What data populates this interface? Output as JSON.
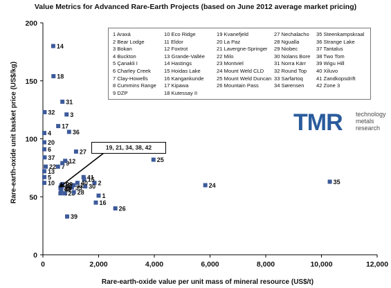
{
  "chart_data": {
    "type": "scatter",
    "title": "Value Metrics for Advanced Rare-Earth Projects (based on June 2012 average market pricing)",
    "xlabel": "Rare-earth-oxide value per unit mass of mineral resource (US$/t)",
    "ylabel": "Rare-earth-oxide unit basket price (US$/kg)",
    "xlim": [
      0,
      12000
    ],
    "ylim": [
      0,
      200
    ],
    "xticks": [
      "0",
      "2,000",
      "4,000",
      "6,000",
      "8,000",
      "10,000",
      "12,000"
    ],
    "yticks": [
      "0",
      "50",
      "100",
      "150",
      "200"
    ],
    "grid": false,
    "marker_color": "#3d5a9a",
    "points": [
      {
        "id": "1",
        "x": 2000,
        "y": 51
      },
      {
        "id": "2",
        "x": 1850,
        "y": 62
      },
      {
        "id": "3",
        "x": 850,
        "y": 121
      },
      {
        "id": "4",
        "x": 50,
        "y": 105
      },
      {
        "id": "5",
        "x": 50,
        "y": 67
      },
      {
        "id": "6",
        "x": 50,
        "y": 91
      },
      {
        "id": "7",
        "x": 540,
        "y": 76
      },
      {
        "id": "8",
        "x": 630,
        "y": 53
      },
      {
        "id": "9",
        "x": 700,
        "y": 79
      },
      {
        "id": "10",
        "x": 50,
        "y": 62
      },
      {
        "id": "11",
        "x": 1100,
        "y": 60
      },
      {
        "id": "12",
        "x": 800,
        "y": 81
      },
      {
        "id": "13",
        "x": 50,
        "y": 72
      },
      {
        "id": "14",
        "x": 370,
        "y": 180
      },
      {
        "id": "15",
        "x": 1480,
        "y": 65
      },
      {
        "id": "16",
        "x": 1900,
        "y": 45
      },
      {
        "id": "17",
        "x": 550,
        "y": 111
      },
      {
        "id": "18",
        "x": 380,
        "y": 154
      },
      {
        "id": "19",
        "x": 660,
        "y": 60
      },
      {
        "id": "20",
        "x": 50,
        "y": 97
      },
      {
        "id": "21",
        "x": 630,
        "y": 58
      },
      {
        "id": "22",
        "x": 100,
        "y": 76
      },
      {
        "id": "23",
        "x": 780,
        "y": 53
      },
      {
        "id": "24",
        "x": 5830,
        "y": 60
      },
      {
        "id": "25",
        "x": 3970,
        "y": 82
      },
      {
        "id": "26",
        "x": 2600,
        "y": 40
      },
      {
        "id": "27",
        "x": 1190,
        "y": 89
      },
      {
        "id": "28",
        "x": 1110,
        "y": 54
      },
      {
        "id": "29",
        "x": 700,
        "y": 61
      },
      {
        "id": "30",
        "x": 1520,
        "y": 59
      },
      {
        "id": "31",
        "x": 700,
        "y": 132
      },
      {
        "id": "32",
        "x": 60,
        "y": 123
      },
      {
        "id": "33",
        "x": 1040,
        "y": 58
      },
      {
        "id": "34",
        "x": 680,
        "y": 59
      },
      {
        "id": "35",
        "x": 10300,
        "y": 63
      },
      {
        "id": "36",
        "x": 940,
        "y": 106
      },
      {
        "id": "37",
        "x": 60,
        "y": 84
      },
      {
        "id": "38",
        "x": 640,
        "y": 57
      },
      {
        "id": "39",
        "x": 870,
        "y": 33
      },
      {
        "id": "40",
        "x": 1240,
        "y": 62
      },
      {
        "id": "41",
        "x": 1460,
        "y": 67
      },
      {
        "id": "42",
        "x": 660,
        "y": 56
      }
    ],
    "legend": [
      [
        "1 Araxá",
        "2 Bear Lodge",
        "3 Bokan",
        "4 Buckton",
        "5 Çanakli I",
        "6 Charley Creek",
        "7 Clay-Howells",
        "8 Cummins Range",
        "9 DZP"
      ],
      [
        "10 Eco Ridge",
        "11 Eldor",
        "12 Foxtrot",
        "13 Grande-Vallée",
        "14 Hastings",
        "15 Hoidas Lake",
        "16 Kangankunde",
        "17 Kipawa",
        "18 Kutessay II"
      ],
      [
        "19 Kvanefjeld",
        "20 La Paz",
        "21 Lavergne-Springer",
        "22 Milo",
        "23 Montviel",
        "24 Mount Weld CLD",
        "25 Mount Weld Duncan",
        "26 Mountain Pass"
      ],
      [
        "27 Nechalacho",
        "28 Nguallа",
        "29 Niobec",
        "30 Nolans Bore",
        "31 Norra Kärr",
        "32 Round Top",
        "33 Sarfartoq",
        "34 Sørensen"
      ],
      [
        "35 Steenkampskraal",
        "36 Strange Lake",
        "37 Tantalus",
        "38 Two Tom",
        "39 Wigu Hill",
        "40 Xiluvo",
        "41 Zandkopsdrift",
        "42 Zone 3"
      ]
    ],
    "annotation": {
      "text": "19, 21, 34, 38, 42",
      "points_to_x": 580,
      "points_to_y": 58
    }
  },
  "logo": {
    "big": "TMR",
    "line1": "technology",
    "line2": "metals",
    "line3": "research",
    "color": "#2a5b9c"
  }
}
